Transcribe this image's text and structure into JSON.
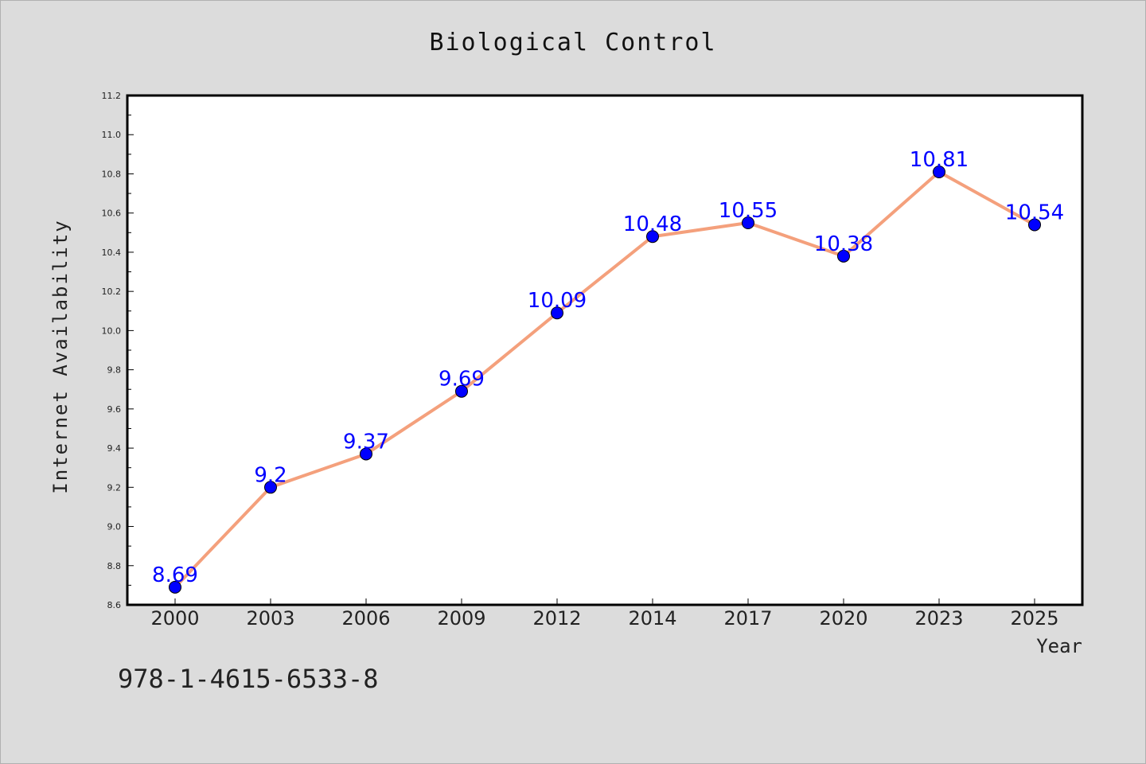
{
  "chart_data": {
    "type": "line",
    "title": "Biological Control",
    "xlabel": "Year",
    "ylabel": "Internet Availability",
    "categories": [
      "2000",
      "2003",
      "2006",
      "2009",
      "2012",
      "2014",
      "2017",
      "2020",
      "2023",
      "2025"
    ],
    "series": [
      {
        "values": [
          8.69,
          9.2,
          9.37,
          9.69,
          10.09,
          10.48,
          10.55,
          10.38,
          10.81,
          10.54
        ],
        "data_labels": [
          "8.69",
          "9.2",
          "9.37",
          "9.69",
          "10.09",
          "10.48",
          "10.55",
          "10.38",
          "10.81",
          "10.54"
        ],
        "line_color": "#f4a07c",
        "marker_color": "#0000ff"
      }
    ],
    "ylim": [
      8.6,
      11.2
    ],
    "yticks": [
      "8.6",
      "8.8",
      "9.0",
      "9.2",
      "9.4",
      "9.6",
      "9.8",
      "10.0",
      "10.2",
      "10.4",
      "10.6",
      "10.8",
      "11.0",
      "11.2"
    ],
    "grid": false,
    "legend": "none"
  },
  "footnote": "978-1-4615-6533-8",
  "colors": {
    "background": "#dcdcdc",
    "plot_area": "#ffffff",
    "label_color": "#0000ff"
  }
}
